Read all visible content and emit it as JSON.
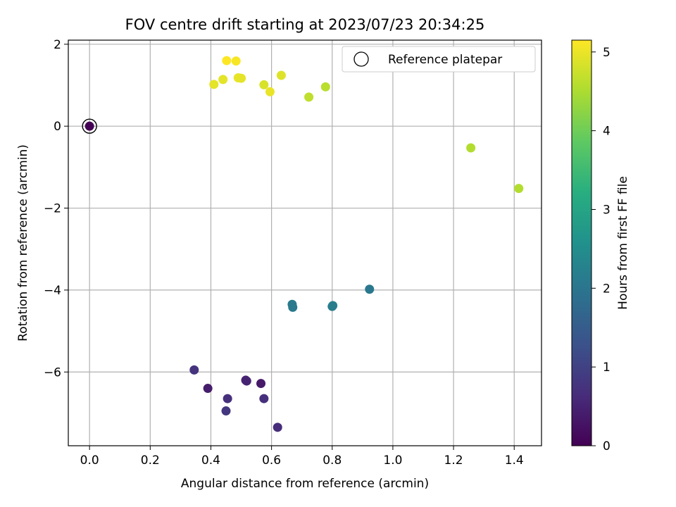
{
  "chart_data": {
    "type": "scatter",
    "title": "FOV centre drift starting at 2023/07/23 20:34:25",
    "xlabel": "Angular distance from reference (arcmin)",
    "ylabel": "Rotation from reference (arcmin)",
    "xlim": [
      -0.07,
      1.49
    ],
    "ylim": [
      -7.8,
      2.1
    ],
    "xticks": [
      0.0,
      0.2,
      0.4,
      0.6,
      0.8,
      1.0,
      1.2,
      1.4
    ],
    "xtick_labels": [
      "0.0",
      "0.2",
      "0.4",
      "0.6",
      "0.8",
      "1.0",
      "1.2",
      "1.4"
    ],
    "yticks": [
      2,
      0,
      -2,
      -4,
      -6
    ],
    "ytick_labels": [
      "2",
      "0",
      "−2",
      "−4",
      "−6"
    ],
    "grid": true,
    "legend": {
      "placement": "upper right",
      "entries": [
        "Reference platepar"
      ]
    },
    "colorbar": {
      "label": "Hours from first FF file",
      "range": [
        0,
        5.15
      ],
      "ticks": [
        0,
        1,
        2,
        3,
        4,
        5
      ],
      "tick_labels": [
        "0",
        "1",
        "2",
        "3",
        "4",
        "5"
      ],
      "colormap": "viridis"
    },
    "reference": {
      "x": 0.0,
      "y": 0.0,
      "name": "Reference platepar"
    },
    "points": [
      {
        "x": 0.0,
        "y": 0.0,
        "hours": 0.0
      },
      {
        "x": 0.345,
        "y": -5.95,
        "hours": 0.75
      },
      {
        "x": 0.39,
        "y": -6.4,
        "hours": 0.4
      },
      {
        "x": 0.45,
        "y": -6.95,
        "hours": 0.8
      },
      {
        "x": 0.455,
        "y": -6.65,
        "hours": 0.7
      },
      {
        "x": 0.515,
        "y": -6.2,
        "hours": 0.45
      },
      {
        "x": 0.518,
        "y": -6.22,
        "hours": 0.5
      },
      {
        "x": 0.565,
        "y": -6.28,
        "hours": 0.35
      },
      {
        "x": 0.575,
        "y": -6.65,
        "hours": 0.7
      },
      {
        "x": 0.62,
        "y": -7.35,
        "hours": 0.65
      },
      {
        "x": 0.668,
        "y": -4.35,
        "hours": 2.1
      },
      {
        "x": 0.67,
        "y": -4.42,
        "hours": 2.1
      },
      {
        "x": 0.8,
        "y": -4.4,
        "hours": 2.1
      },
      {
        "x": 0.802,
        "y": -4.38,
        "hours": 2.15
      },
      {
        "x": 0.923,
        "y": -3.98,
        "hours": 2.05
      },
      {
        "x": 0.41,
        "y": 1.02,
        "hours": 4.95
      },
      {
        "x": 0.44,
        "y": 1.14,
        "hours": 4.95
      },
      {
        "x": 0.452,
        "y": 1.6,
        "hours": 5.15
      },
      {
        "x": 0.483,
        "y": 1.59,
        "hours": 5.1
      },
      {
        "x": 0.49,
        "y": 1.18,
        "hours": 5.0
      },
      {
        "x": 0.5,
        "y": 1.17,
        "hours": 4.95
      },
      {
        "x": 0.575,
        "y": 1.01,
        "hours": 4.85
      },
      {
        "x": 0.595,
        "y": 0.84,
        "hours": 5.0
      },
      {
        "x": 0.632,
        "y": 1.24,
        "hours": 4.9
      },
      {
        "x": 0.723,
        "y": 0.71,
        "hours": 4.65
      },
      {
        "x": 0.778,
        "y": 0.96,
        "hours": 4.6
      },
      {
        "x": 1.257,
        "y": -0.53,
        "hours": 4.55
      },
      {
        "x": 1.415,
        "y": -1.52,
        "hours": 4.55
      }
    ]
  }
}
